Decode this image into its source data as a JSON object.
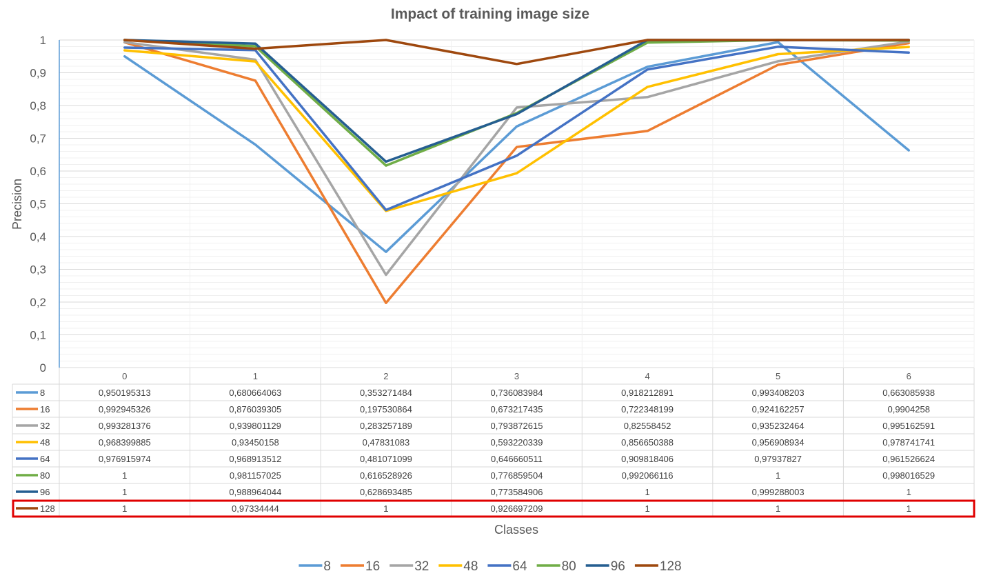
{
  "chart_data": {
    "type": "line",
    "title": "Impact of training image size",
    "xlabel": "Classes",
    "ylabel": "Precision",
    "categories": [
      "0",
      "1",
      "2",
      "3",
      "4",
      "5",
      "6"
    ],
    "ylim": [
      0,
      1
    ],
    "yticks": [
      "0",
      "0,1",
      "0,2",
      "0,3",
      "0,4",
      "0,5",
      "0,6",
      "0,7",
      "0,8",
      "0,9",
      "1"
    ],
    "grid": true,
    "legend_position": "bottom",
    "data_table": true,
    "highlighted_series": "128",
    "highlight_color": "#e00000",
    "series": [
      {
        "name": "8",
        "color": "#5b9bd5",
        "values": [
          0.950195313,
          0.680664063,
          0.353271484,
          0.736083984,
          0.918212891,
          0.993408203,
          0.663085938
        ],
        "cells": [
          "0,950195313",
          "0,680664063",
          "0,353271484",
          "0,736083984",
          "0,918212891",
          "0,993408203",
          "0,663085938"
        ]
      },
      {
        "name": "16",
        "color": "#ed7d31",
        "values": [
          0.992945326,
          0.876039305,
          0.197530864,
          0.673217435,
          0.722348199,
          0.924162257,
          0.9904258
        ],
        "cells": [
          "0,992945326",
          "0,876039305",
          "0,197530864",
          "0,673217435",
          "0,722348199",
          "0,924162257",
          "0,9904258"
        ]
      },
      {
        "name": "32",
        "color": "#a5a5a5",
        "values": [
          0.993281376,
          0.939801129,
          0.283257189,
          0.793872615,
          0.82558452,
          0.935232464,
          0.995162591
        ],
        "cells": [
          "0,993281376",
          "0,939801129",
          "0,283257189",
          "0,793872615",
          "0,82558452",
          "0,935232464",
          "0,995162591"
        ]
      },
      {
        "name": "48",
        "color": "#ffc000",
        "values": [
          0.968399885,
          0.93450158,
          0.47831083,
          0.593220339,
          0.856650388,
          0.956908934,
          0.978741741
        ],
        "cells": [
          "0,968399885",
          "0,93450158",
          "0,47831083",
          "0,593220339",
          "0,856650388",
          "0,956908934",
          "0,978741741"
        ]
      },
      {
        "name": "64",
        "color": "#4472c4",
        "values": [
          0.976915974,
          0.968913512,
          0.481071099,
          0.646660511,
          0.909818406,
          0.97937827,
          0.961526624
        ],
        "cells": [
          "0,976915974",
          "0,968913512",
          "0,481071099",
          "0,646660511",
          "0,909818406",
          "0,97937827",
          "0,961526624"
        ]
      },
      {
        "name": "80",
        "color": "#70ad47",
        "values": [
          1,
          0.981157025,
          0.616528926,
          0.776859504,
          0.992066116,
          1,
          0.998016529
        ],
        "cells": [
          "1",
          "0,981157025",
          "0,616528926",
          "0,776859504",
          "0,992066116",
          "1",
          "0,998016529"
        ]
      },
      {
        "name": "96",
        "color": "#255e91",
        "values": [
          1,
          0.988964044,
          0.628693485,
          0.773584906,
          1,
          0.999288003,
          1
        ],
        "cells": [
          "1",
          "0,988964044",
          "0,628693485",
          "0,773584906",
          "1",
          "0,999288003",
          "1"
        ]
      },
      {
        "name": "128",
        "color": "#9e480e",
        "values": [
          1,
          0.97334444,
          1,
          0.926697209,
          1,
          1,
          1
        ],
        "cells": [
          "1",
          "0,97334444",
          "1",
          "0,926697209",
          "1",
          "1",
          "1"
        ]
      }
    ]
  }
}
